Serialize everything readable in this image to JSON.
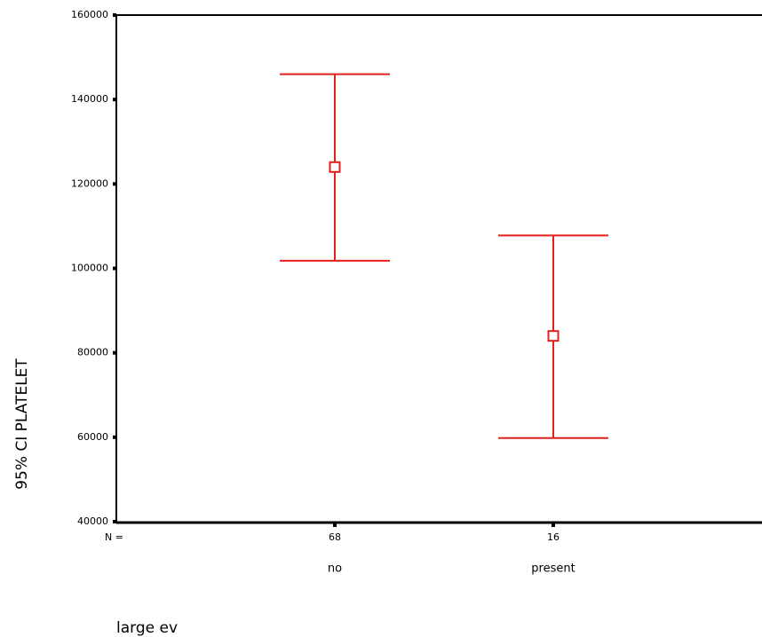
{
  "chart_data": {
    "type": "errorbar",
    "y_label": "95% CI PLATELET",
    "x_label": "large ev",
    "n_label": "N =",
    "categories": [
      "no",
      "present"
    ],
    "n": [
      68,
      16
    ],
    "values": [
      124000,
      84000
    ],
    "lower": [
      101800,
      59800
    ],
    "upper": [
      146000,
      107800
    ],
    "color": "#e3201b",
    "ylim": [
      40000,
      160000
    ],
    "yticks": [
      40000,
      60000,
      80000,
      100000,
      120000,
      140000,
      160000
    ]
  }
}
